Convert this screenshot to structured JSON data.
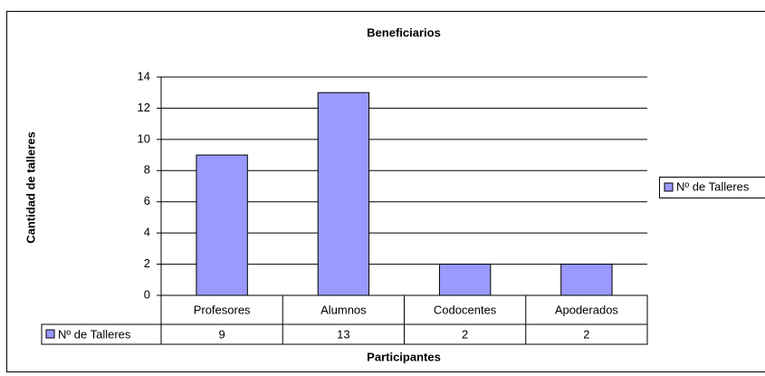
{
  "chart_data": {
    "type": "bar",
    "title": "Beneficiarios",
    "x_label": "Participantes",
    "y_label": "Cantidad de talleres",
    "categories": [
      "Profesores",
      "Alumnos",
      "Codocentes",
      "Apoderados"
    ],
    "series": [
      {
        "name": "Nº de Talleres",
        "color": "#9999ff",
        "values": [
          9,
          13,
          2,
          2
        ]
      }
    ],
    "ylim": [
      0,
      14
    ],
    "yticks": [
      0,
      2,
      4,
      6,
      8,
      10,
      12,
      14
    ],
    "grid": true,
    "legend": "right"
  }
}
